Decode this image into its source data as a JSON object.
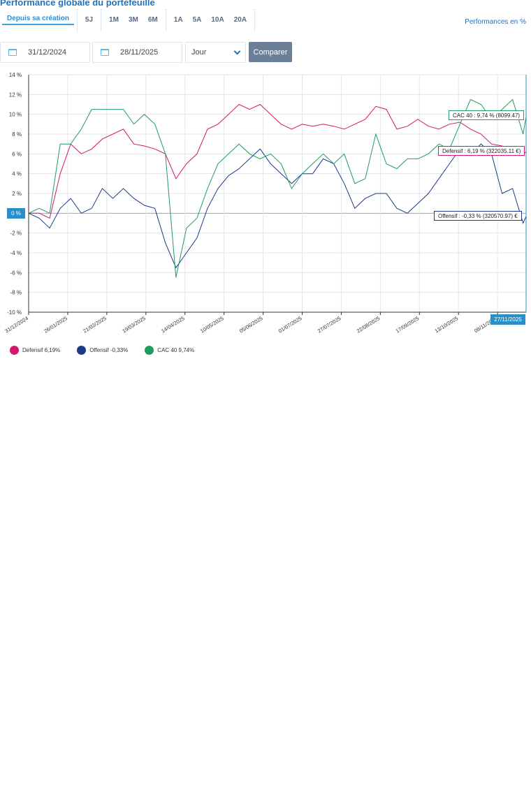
{
  "header": {
    "title": "Performance globale du portefeuille",
    "perf_label": "Performances en %"
  },
  "periods": [
    "Depuis sa création",
    "5J",
    "1M",
    "3M",
    "6M",
    "1A",
    "5A",
    "10A",
    "20A"
  ],
  "controls": {
    "start_date": "31/12/2024",
    "end_date": "28/11/2025",
    "granularity": "Jour",
    "compare_label": "Comparer"
  },
  "chart_data": {
    "type": "line",
    "ylim": [
      -10,
      14
    ],
    "yticks": [
      "14 %",
      "12 %",
      "10 %",
      "8 %",
      "6 %",
      "4 %",
      "2 %",
      "0 %",
      "-2 %",
      "-4 %",
      "-6 %",
      "-8 %",
      "-10 %"
    ],
    "ytick_values": [
      14,
      12,
      10,
      8,
      6,
      4,
      2,
      0,
      -2,
      -4,
      -6,
      -8,
      -10
    ],
    "xlim": [
      "2024-12-31",
      "2025-11-27"
    ],
    "xticks": [
      "31/12/2024",
      "26/01/2025",
      "21/02/2025",
      "19/03/2025",
      "14/04/2025",
      "10/05/2025",
      "05/06/2025",
      "01/07/2025",
      "27/07/2025",
      "22/08/2025",
      "17/09/2025",
      "13/10/2025",
      "08/11/2025"
    ],
    "grid": true,
    "zero_label": "0 %",
    "end_label": "27/11/2025",
    "x": [
      "2024-12-31",
      "2025-01-07",
      "2025-01-14",
      "2025-01-21",
      "2025-01-28",
      "2025-02-04",
      "2025-02-11",
      "2025-02-18",
      "2025-02-25",
      "2025-03-04",
      "2025-03-11",
      "2025-03-18",
      "2025-03-25",
      "2025-04-01",
      "2025-04-08",
      "2025-04-15",
      "2025-04-22",
      "2025-04-29",
      "2025-05-06",
      "2025-05-13",
      "2025-05-20",
      "2025-05-27",
      "2025-06-03",
      "2025-06-10",
      "2025-06-17",
      "2025-06-24",
      "2025-07-01",
      "2025-07-08",
      "2025-07-15",
      "2025-07-22",
      "2025-07-29",
      "2025-08-05",
      "2025-08-12",
      "2025-08-19",
      "2025-08-26",
      "2025-09-02",
      "2025-09-09",
      "2025-09-16",
      "2025-09-23",
      "2025-09-30",
      "2025-10-07",
      "2025-10-14",
      "2025-10-21",
      "2025-10-28",
      "2025-11-04",
      "2025-11-11",
      "2025-11-18",
      "2025-11-25",
      "2025-11-27"
    ],
    "series": [
      {
        "name": "Defensif",
        "color": "#d4166f",
        "legend": "6,19%",
        "tooltip": "Defensif : 6,19 % (322035.11 €)",
        "values": [
          0,
          0,
          -0.5,
          4,
          7,
          6,
          6.5,
          7.5,
          8,
          8.5,
          7,
          6.8,
          6.5,
          6,
          3.5,
          5,
          6,
          8.5,
          9,
          10,
          11,
          10.5,
          11,
          10,
          9,
          8.5,
          9,
          8.8,
          9,
          8.8,
          8.5,
          9,
          9.5,
          10.8,
          10.5,
          8.5,
          8.8,
          9.5,
          8.8,
          8.5,
          9,
          9.2,
          8.5,
          8,
          7,
          6.8,
          6,
          6,
          6.19
        ]
      },
      {
        "name": "Offensif",
        "color": "#1a3a8a",
        "legend": "-0,33%",
        "tooltip": "Offensif : -0,33 % (320570.97) €",
        "values": [
          0,
          -0.5,
          -1.5,
          0.5,
          1.5,
          0,
          0.5,
          2.5,
          1.5,
          2.5,
          1.5,
          0.8,
          0.5,
          -3,
          -5.5,
          -4,
          -2.5,
          0.5,
          2.5,
          3.8,
          4.5,
          5.5,
          6.5,
          5,
          4,
          3,
          4,
          4,
          5.5,
          5,
          3,
          0.5,
          1.5,
          2,
          2,
          0.5,
          0,
          1,
          2,
          3.5,
          5,
          6.5,
          6,
          7,
          6,
          2,
          2.5,
          -1,
          -0.33
        ]
      },
      {
        "name": "CAC 40",
        "color": "#1f9c62",
        "legend": "9,74%",
        "tooltip": "CAC 40 : 9,74 % (8099.47)",
        "values": [
          0,
          0.5,
          0,
          7,
          7,
          8.5,
          10.5,
          10.5,
          10.5,
          10.5,
          9,
          10,
          9,
          6,
          -6.5,
          -1.5,
          -0.5,
          2.5,
          5,
          6,
          7,
          6,
          5.5,
          6,
          5,
          2.5,
          4,
          5,
          6,
          5,
          6,
          3,
          3.5,
          8,
          5,
          4.5,
          5.5,
          5.5,
          6,
          7,
          6.5,
          9,
          11.5,
          11,
          9.5,
          10.5,
          11.5,
          8,
          9.74
        ]
      }
    ]
  }
}
